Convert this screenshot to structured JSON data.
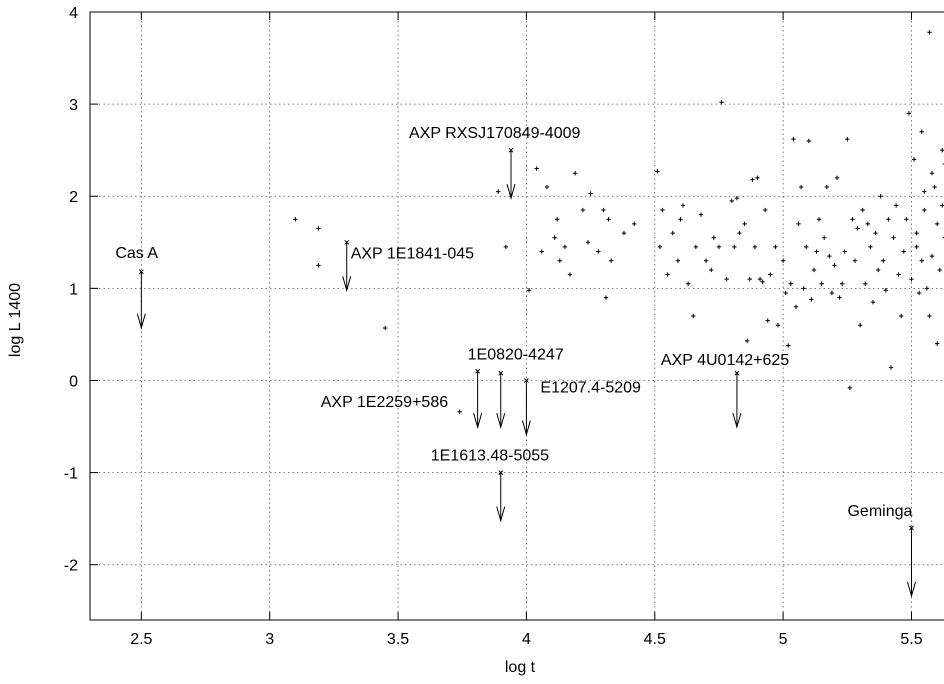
{
  "chart_data": {
    "type": "scatter",
    "title": "",
    "xlabel": "log t",
    "ylabel": "log L 1400",
    "xlim": [
      2.3,
      5.65
    ],
    "ylim": [
      -2.6,
      4
    ],
    "grid": true,
    "x_ticks": [
      {
        "value": 2.5,
        "label": "2.5"
      },
      {
        "value": 3,
        "label": "3"
      },
      {
        "value": 3.5,
        "label": "3.5"
      },
      {
        "value": 4,
        "label": "4"
      },
      {
        "value": 4.5,
        "label": "4.5"
      },
      {
        "value": 5,
        "label": "5"
      },
      {
        "value": 5.5,
        "label": "5.5"
      }
    ],
    "y_ticks": [
      {
        "value": -2,
        "label": "-2"
      },
      {
        "value": -1,
        "label": "-1"
      },
      {
        "value": 0,
        "label": "0"
      },
      {
        "value": 1,
        "label": "1"
      },
      {
        "value": 2,
        "label": "2"
      },
      {
        "value": 3,
        "label": "3"
      },
      {
        "value": 4,
        "label": "4"
      }
    ],
    "upper_limits": [
      {
        "name": "Cas A",
        "x": 2.5,
        "y": 1.18
      },
      {
        "name": "AXP 1E1841-045",
        "x": 3.3,
        "y": 1.5
      },
      {
        "name": "AXP RXSJ170849-4009",
        "x": 3.94,
        "y": 2.5
      },
      {
        "name": "1E0820-4247",
        "x": 3.81,
        "y": 0.1
      },
      {
        "name": "AXP 1E2259+586",
        "x": 3.9,
        "y": 0.08
      },
      {
        "name": "E1207.4-5209",
        "x": 4.0,
        "y": 0.0
      },
      {
        "name": "1E1613.48-5055",
        "x": 3.9,
        "y": -1.0
      },
      {
        "name": "AXP 4U0142+625",
        "x": 4.82,
        "y": 0.08
      },
      {
        "name": "Geminga",
        "x": 5.5,
        "y": -1.6
      }
    ],
    "points": [
      [
        3.1,
        1.75
      ],
      [
        3.19,
        1.65
      ],
      [
        3.19,
        1.25
      ],
      [
        3.45,
        0.57
      ],
      [
        3.74,
        -0.34
      ],
      [
        3.89,
        2.05
      ],
      [
        3.92,
        1.45
      ],
      [
        4.01,
        0.98
      ],
      [
        4.04,
        2.3
      ],
      [
        4.06,
        1.4
      ],
      [
        4.08,
        2.1
      ],
      [
        4.11,
        1.55
      ],
      [
        4.12,
        1.75
      ],
      [
        4.13,
        1.3
      ],
      [
        4.15,
        1.45
      ],
      [
        4.17,
        1.15
      ],
      [
        4.19,
        2.25
      ],
      [
        4.22,
        1.85
      ],
      [
        4.24,
        1.5
      ],
      [
        4.25,
        2.03
      ],
      [
        4.28,
        1.4
      ],
      [
        4.3,
        1.85
      ],
      [
        4.31,
        0.9
      ],
      [
        4.32,
        1.75
      ],
      [
        4.33,
        1.3
      ],
      [
        4.38,
        1.6
      ],
      [
        4.42,
        1.7
      ],
      [
        4.51,
        2.27
      ],
      [
        4.52,
        1.45
      ],
      [
        4.53,
        1.85
      ],
      [
        4.55,
        1.15
      ],
      [
        4.57,
        1.6
      ],
      [
        4.59,
        1.3
      ],
      [
        4.6,
        1.75
      ],
      [
        4.61,
        1.9
      ],
      [
        4.63,
        1.05
      ],
      [
        4.65,
        0.7
      ],
      [
        4.66,
        1.45
      ],
      [
        4.68,
        1.8
      ],
      [
        4.7,
        1.3
      ],
      [
        4.72,
        1.2
      ],
      [
        4.73,
        1.55
      ],
      [
        4.75,
        1.45
      ],
      [
        4.76,
        3.02
      ],
      [
        4.78,
        1.1
      ],
      [
        4.8,
        1.95
      ],
      [
        4.81,
        1.45
      ],
      [
        4.82,
        1.98
      ],
      [
        4.83,
        1.6
      ],
      [
        4.85,
        1.7
      ],
      [
        4.86,
        0.43
      ],
      [
        4.87,
        1.1
      ],
      [
        4.88,
        2.18
      ],
      [
        4.89,
        1.45
      ],
      [
        4.9,
        2.2
      ],
      [
        4.91,
        1.1
      ],
      [
        4.92,
        1.07
      ],
      [
        4.93,
        1.85
      ],
      [
        4.94,
        0.65
      ],
      [
        4.95,
        1.15
      ],
      [
        4.97,
        1.45
      ],
      [
        4.98,
        0.6
      ],
      [
        5.0,
        1.3
      ],
      [
        5.01,
        0.95
      ],
      [
        5.02,
        0.38
      ],
      [
        5.03,
        1.05
      ],
      [
        5.04,
        2.62
      ],
      [
        5.05,
        0.8
      ],
      [
        5.06,
        1.7
      ],
      [
        5.07,
        2.1
      ],
      [
        5.08,
        1.0
      ],
      [
        5.09,
        1.45
      ],
      [
        5.1,
        2.6
      ],
      [
        5.11,
        0.88
      ],
      [
        5.12,
        1.2
      ],
      [
        5.13,
        1.4
      ],
      [
        5.14,
        1.75
      ],
      [
        5.15,
        1.05
      ],
      [
        5.16,
        1.55
      ],
      [
        5.17,
        2.1
      ],
      [
        5.18,
        1.35
      ],
      [
        5.19,
        0.95
      ],
      [
        5.2,
        1.25
      ],
      [
        5.21,
        2.2
      ],
      [
        5.22,
        0.9
      ],
      [
        5.23,
        1.05
      ],
      [
        5.24,
        1.4
      ],
      [
        5.25,
        2.62
      ],
      [
        5.26,
        -0.08
      ],
      [
        5.27,
        1.75
      ],
      [
        5.28,
        1.3
      ],
      [
        5.29,
        1.65
      ],
      [
        5.3,
        0.6
      ],
      [
        5.31,
        1.85
      ],
      [
        5.32,
        1.05
      ],
      [
        5.33,
        1.7
      ],
      [
        5.34,
        1.45
      ],
      [
        5.35,
        0.85
      ],
      [
        5.36,
        1.6
      ],
      [
        5.37,
        1.2
      ],
      [
        5.38,
        2.0
      ],
      [
        5.39,
        1.3
      ],
      [
        5.4,
        0.98
      ],
      [
        5.41,
        1.75
      ],
      [
        5.42,
        0.14
      ],
      [
        5.43,
        1.55
      ],
      [
        5.44,
        1.9
      ],
      [
        5.45,
        1.15
      ],
      [
        5.46,
        0.7
      ],
      [
        5.47,
        1.4
      ],
      [
        5.48,
        1.75
      ],
      [
        5.49,
        2.9
      ],
      [
        5.5,
        1.1
      ],
      [
        5.51,
        2.4
      ],
      [
        5.52,
        1.6
      ],
      [
        5.53,
        0.95
      ],
      [
        5.54,
        1.3
      ],
      [
        5.55,
        1.85
      ],
      [
        5.56,
        1.0
      ],
      [
        5.57,
        3.78
      ],
      [
        5.58,
        1.35
      ],
      [
        5.59,
        2.1
      ],
      [
        5.6,
        1.7
      ],
      [
        5.61,
        1.2
      ],
      [
        5.62,
        2.5
      ],
      [
        5.63,
        1.55
      ],
      [
        5.64,
        0.55
      ],
      [
        5.54,
        2.7
      ],
      [
        5.58,
        2.25
      ],
      [
        5.62,
        1.9
      ],
      [
        5.52,
        1.45
      ],
      [
        5.57,
        0.7
      ],
      [
        5.6,
        0.4
      ],
      [
        5.63,
        2.35
      ],
      [
        5.55,
        2.05
      ]
    ]
  }
}
